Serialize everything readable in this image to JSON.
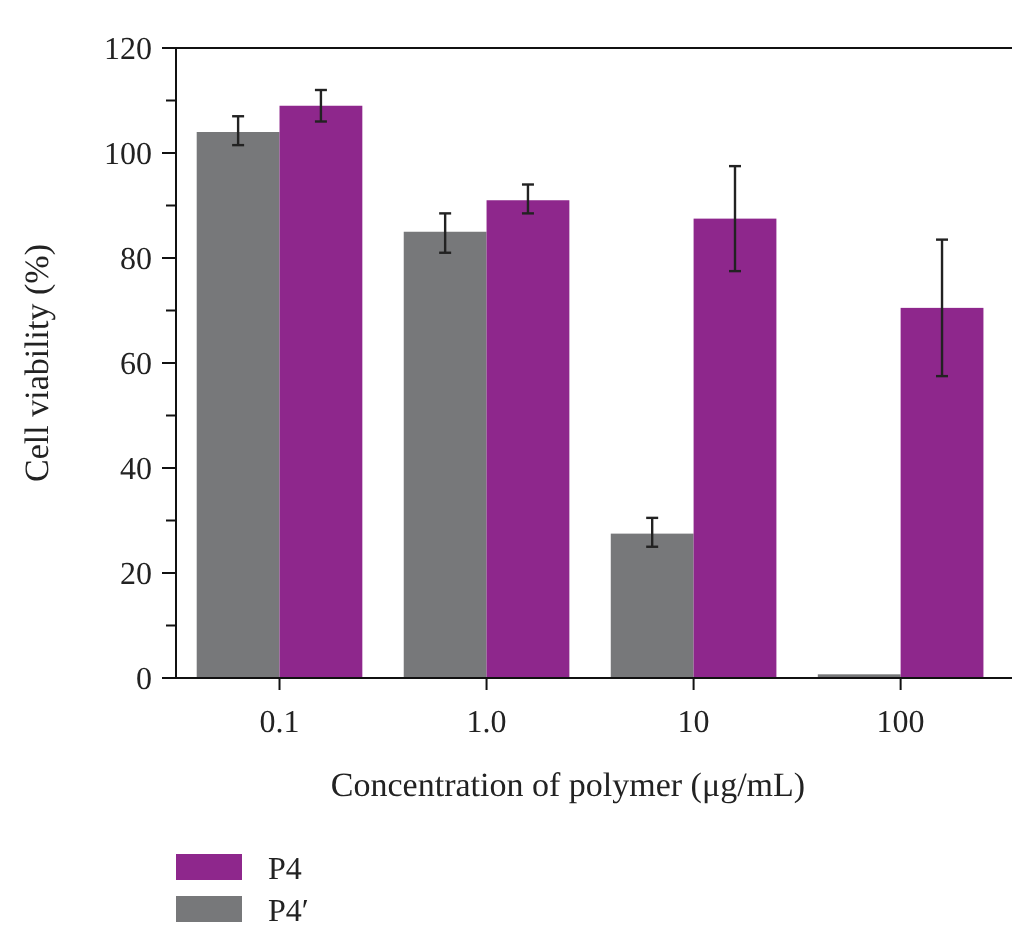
{
  "chart_data": {
    "type": "bar",
    "xlabel": "Concentration of polymer (μg/mL)",
    "ylabel": "Cell viability (%)",
    "categories": [
      "0.1",
      "1.0",
      "10",
      "100"
    ],
    "series": [
      {
        "name": "P4′",
        "color": "#77787a",
        "values": [
          104,
          85,
          27.5,
          0.7
        ],
        "errors": [
          [
            101.5,
            107
          ],
          [
            81,
            88.5
          ],
          [
            25,
            30.5
          ],
          null
        ]
      },
      {
        "name": "P4",
        "color": "#8e278c",
        "values": [
          109,
          91,
          87.5,
          70.5
        ],
        "errors": [
          [
            106,
            112
          ],
          [
            88.5,
            94
          ],
          [
            77.5,
            97.5
          ],
          [
            57.5,
            83.5
          ]
        ]
      }
    ],
    "ylim": [
      0,
      120
    ],
    "yticks": [
      0,
      {
        "value": 10,
        "label": null
      },
      20,
      {
        "value": 30,
        "label": null
      },
      40,
      {
        "value": 50,
        "label": null
      },
      60,
      {
        "value": 70,
        "label": null
      },
      80,
      {
        "value": 90,
        "label": null
      },
      100,
      {
        "value": 110,
        "label": null
      },
      120
    ],
    "grid": false,
    "legend": "bottom"
  }
}
